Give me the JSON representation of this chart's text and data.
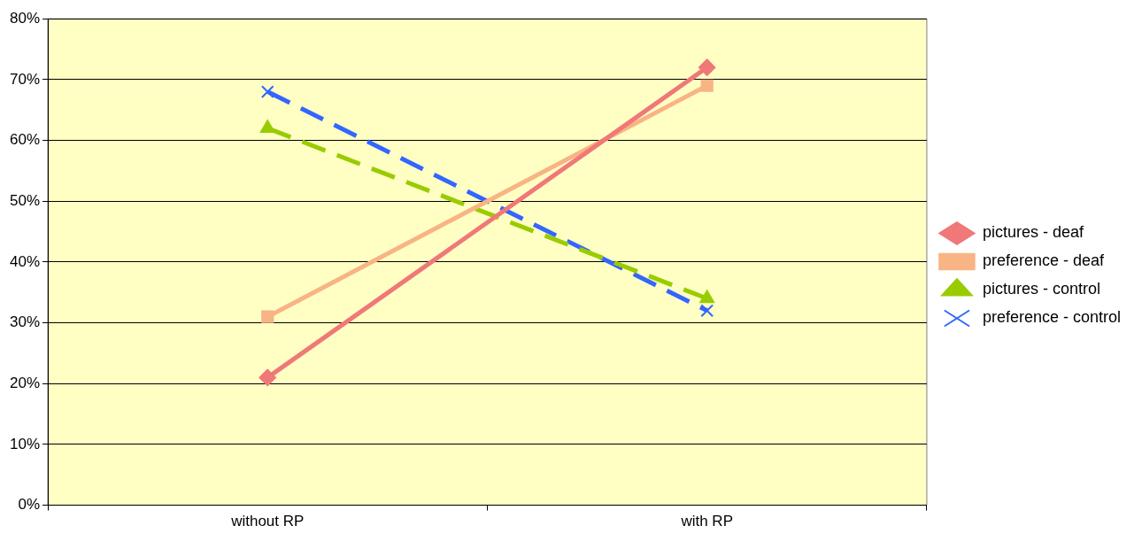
{
  "chart_data": {
    "type": "line",
    "categories": [
      "without RP",
      "with RP"
    ],
    "series": [
      {
        "name": "pictures - deaf",
        "color": "#f07878",
        "values": [
          21,
          72
        ],
        "marker": "diamond",
        "line_style": "solid"
      },
      {
        "name": "preference - deaf",
        "color": "#f8b484",
        "values": [
          31,
          69
        ],
        "marker": "square",
        "line_style": "solid"
      },
      {
        "name": "pictures - control",
        "color": "#99cc00",
        "values": [
          62,
          34
        ],
        "marker": "triangle",
        "line_style": "dashed"
      },
      {
        "name": "preference - control",
        "color": "#3366ff",
        "values": [
          68,
          32
        ],
        "marker": "cross",
        "line_style": "dashed"
      }
    ],
    "ylim": [
      0,
      80
    ],
    "yticks": [
      {
        "value": 0,
        "label": "0%"
      },
      {
        "value": 10,
        "label": "10%"
      },
      {
        "value": 20,
        "label": "20%"
      },
      {
        "value": 30,
        "label": "30%"
      },
      {
        "value": 40,
        "label": "40%"
      },
      {
        "value": 50,
        "label": "50%"
      },
      {
        "value": 60,
        "label": "60%"
      },
      {
        "value": 70,
        "label": "70%"
      },
      {
        "value": 80,
        "label": "80%"
      }
    ],
    "grid": "y",
    "legend": "right"
  }
}
